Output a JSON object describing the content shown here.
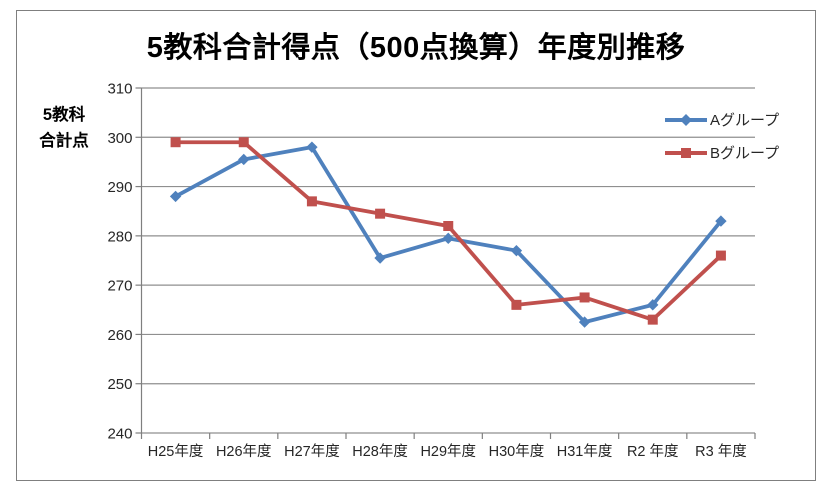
{
  "chart": {
    "y_axis_title_lines": [
      "5教科",
      "合計点"
    ]
  },
  "chart_data": {
    "type": "line",
    "title": "5教科合計得点（500点換算）年度別推移",
    "xlabel": "",
    "ylabel": "5教科合計点",
    "categories": [
      "H25年度",
      "H26年度",
      "H27年度",
      "H28年度",
      "H29年度",
      "H30年度",
      "H31年度",
      "R2 年度",
      "R3 年度"
    ],
    "series": [
      {
        "id": "a",
        "name": "Aグループ",
        "marker": "diamond",
        "color": "#4F81BD",
        "values": [
          288,
          295.5,
          298,
          275.5,
          279.5,
          277,
          262.5,
          266,
          283
        ]
      },
      {
        "id": "b",
        "name": "Bグループ",
        "marker": "square",
        "color": "#C0504D",
        "values": [
          299,
          299,
          287,
          284.5,
          282,
          266,
          267.5,
          263,
          276
        ]
      }
    ],
    "ylim": [
      240,
      310
    ],
    "yticks": [
      240,
      250,
      260,
      270,
      280,
      290,
      300,
      310
    ],
    "grid": true,
    "legend_position": "inside-top-right"
  },
  "colors": {
    "grid": "#8f8f8f",
    "axis": "#7f7f7f",
    "text": "#262626",
    "frame_border": "#7f7f7f",
    "series_a": "#4F81BD",
    "series_b": "#C0504D"
  }
}
